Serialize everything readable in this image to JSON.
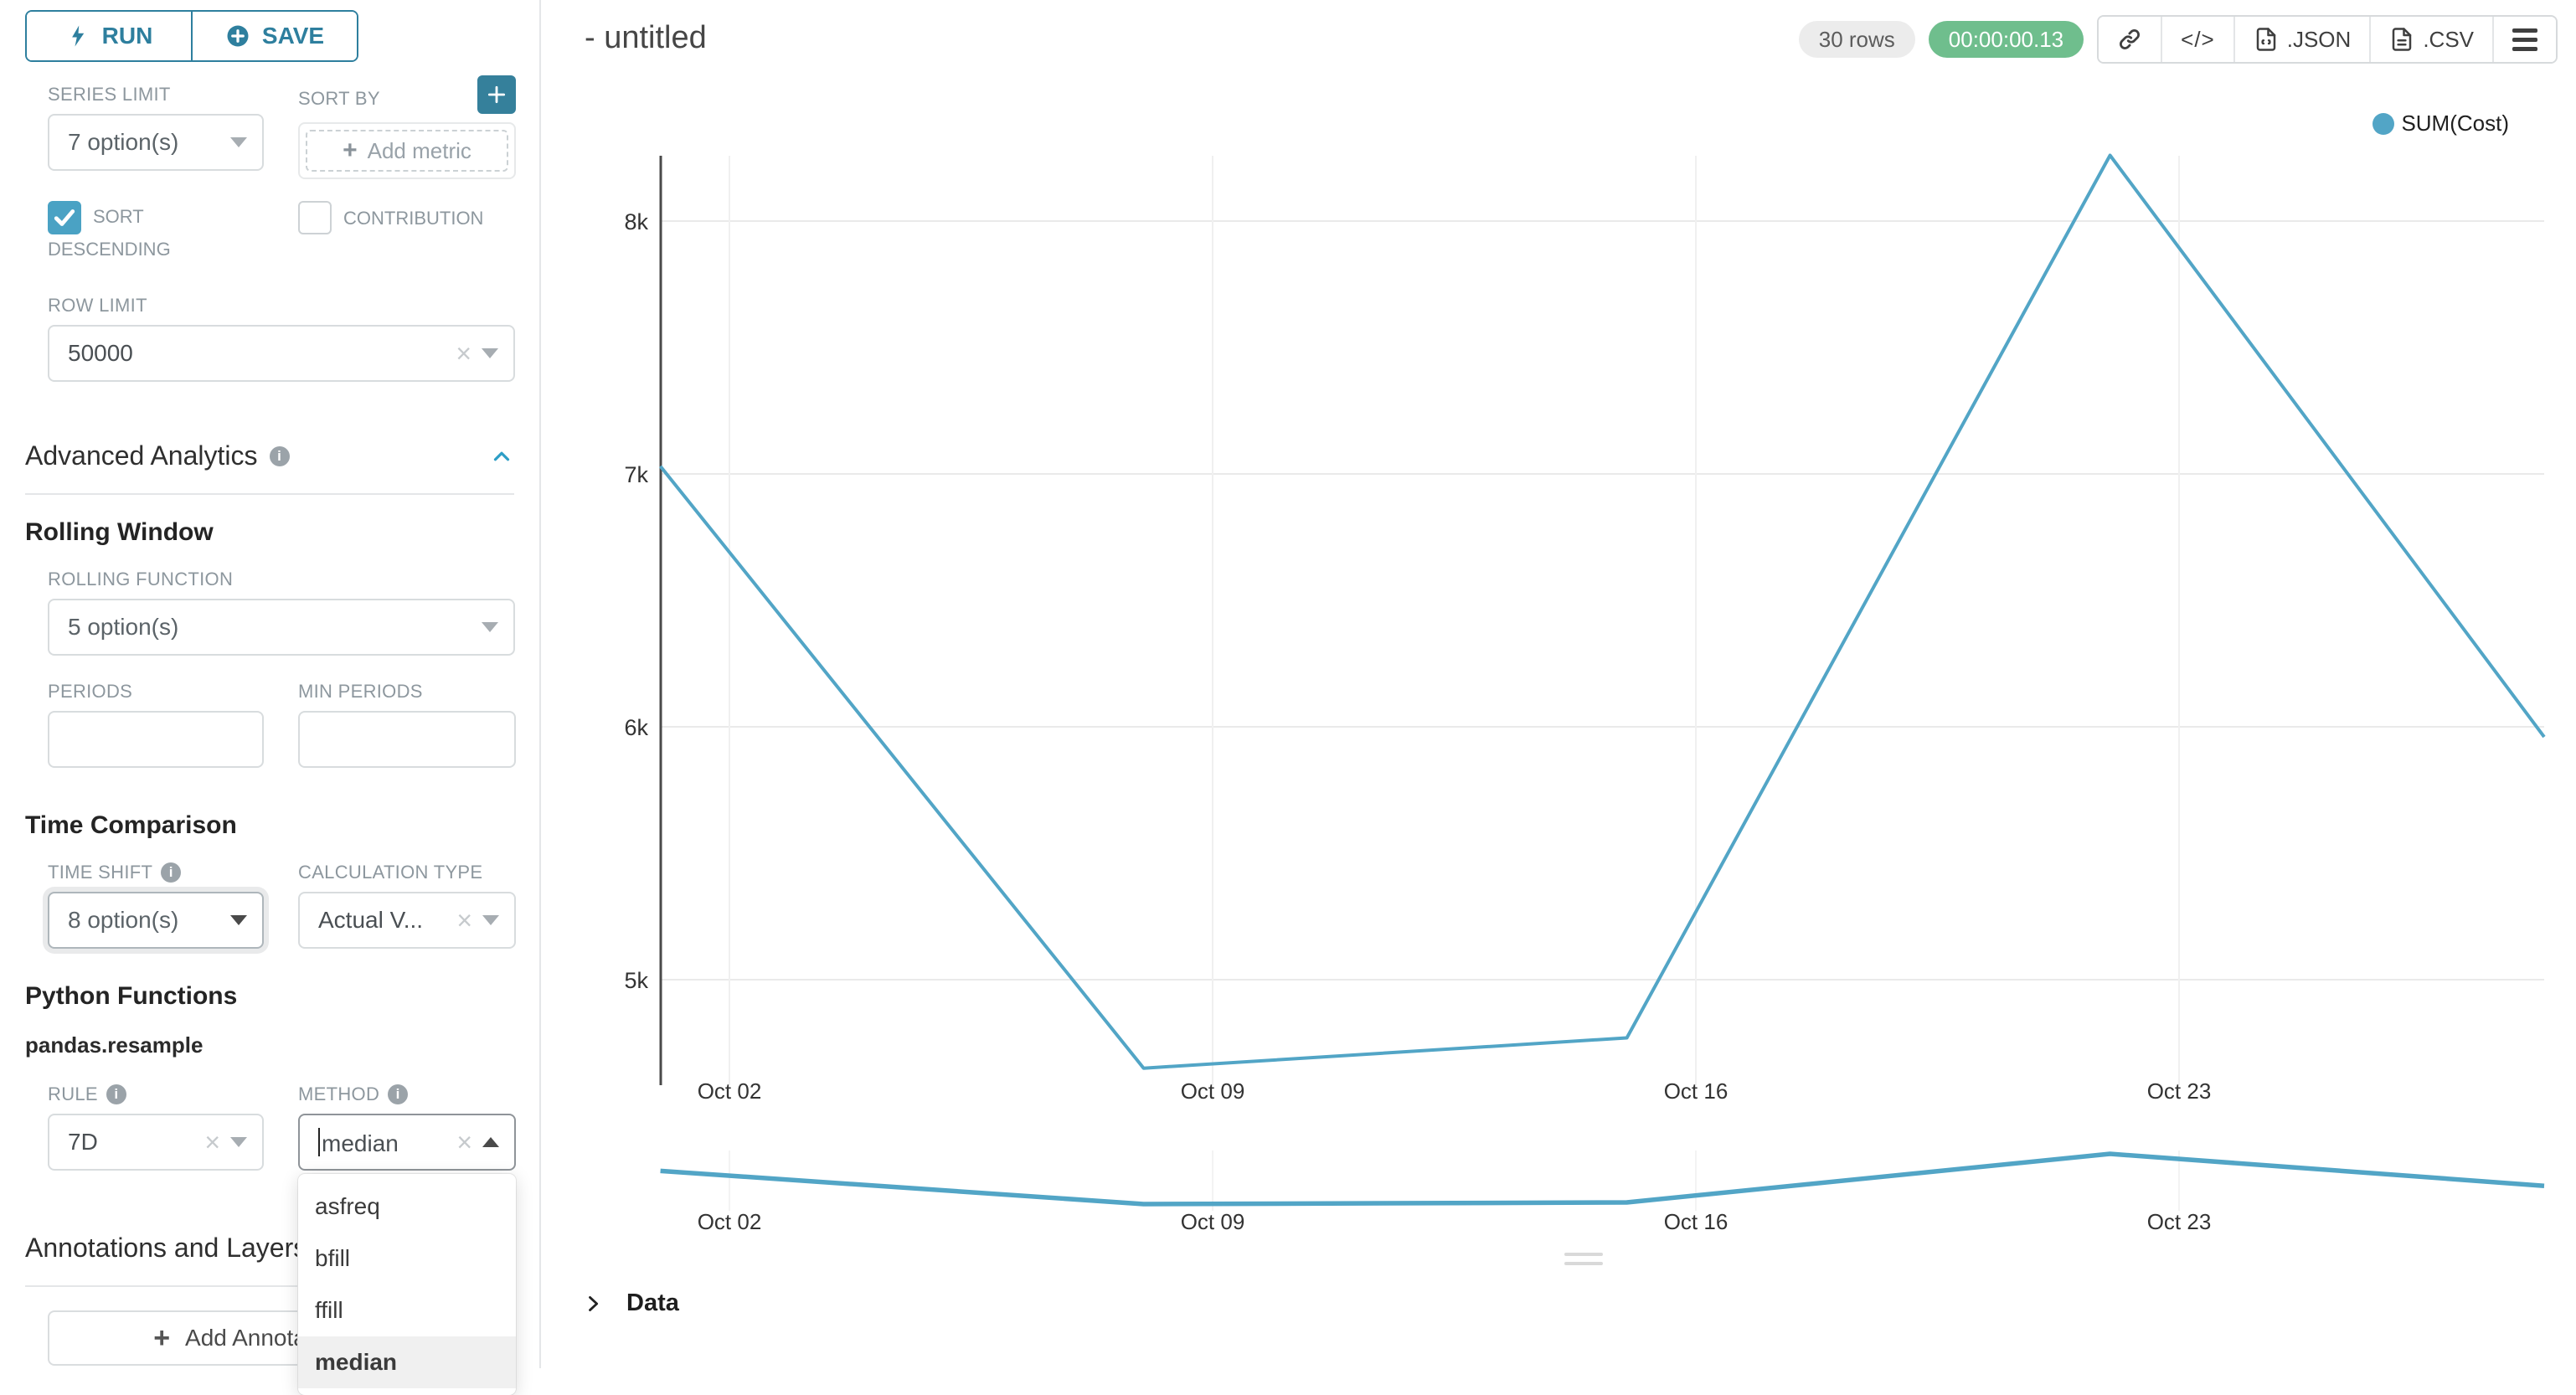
{
  "colors": {
    "accent_teal": "#2E7F9E",
    "plus_button": "#35809B",
    "checkbox": "#4AA2C4",
    "line": "#52A5C6",
    "success_badge": "#6FBE8D",
    "rows_pill_bg": "#ECECEC"
  },
  "sidebar": {
    "run_label": "RUN",
    "save_label": "SAVE",
    "series_limit": {
      "label": "SERIES LIMIT",
      "value": "7 option(s)"
    },
    "sort_by": {
      "label": "SORT BY",
      "add_metric_label": "Add metric"
    },
    "sort_descending": {
      "label": "SORT DESCENDING",
      "checked": true
    },
    "contribution": {
      "label": "CONTRIBUTION",
      "checked": false
    },
    "row_limit": {
      "label": "ROW LIMIT",
      "value": "50000"
    },
    "advanced_analytics_title": "Advanced Analytics",
    "rolling_window": {
      "title": "Rolling Window",
      "rolling_function": {
        "label": "ROLLING FUNCTION",
        "value": "5 option(s)"
      },
      "periods_label": "PERIODS",
      "min_periods_label": "MIN PERIODS"
    },
    "time_comparison": {
      "title": "Time Comparison",
      "time_shift": {
        "label": "TIME SHIFT",
        "value": "8 option(s)"
      },
      "calculation_type": {
        "label": "CALCULATION TYPE",
        "value": "Actual V..."
      }
    },
    "python_functions": {
      "title": "Python Functions",
      "subtitle": "pandas.resample",
      "rule": {
        "label": "RULE",
        "value": "7D"
      },
      "method": {
        "label": "METHOD",
        "value": "median",
        "options": [
          "asfreq",
          "bfill",
          "ffill",
          "median"
        ],
        "selected": "median"
      }
    },
    "annotations": {
      "title": "Annotations and Layers",
      "add_button_label": "Add Annotation Layer"
    }
  },
  "header": {
    "title": "- untitled",
    "rows_badge": "30 rows",
    "timer_badge": "00:00:00.13",
    "json_label": ".JSON",
    "csv_label": ".CSV"
  },
  "chart_data": {
    "type": "line",
    "title": "- untitled",
    "legend": {
      "position": "top-right",
      "items": [
        {
          "label": "SUM(Cost)",
          "color": "#52A5C6"
        }
      ]
    },
    "x_axis": {
      "tick_labels": [
        "Oct 02",
        "Oct 09",
        "Oct 16",
        "Oct 23"
      ],
      "tick_day_offsets": [
        0,
        7,
        14,
        21
      ]
    },
    "y_axis": {
      "tick_labels": [
        "8k",
        "7k",
        "6k",
        "5k"
      ],
      "tick_values": [
        8000,
        7000,
        6000,
        5000
      ],
      "range_approx": [
        4550,
        8300
      ]
    },
    "series": [
      {
        "name": "SUM(Cost)",
        "color": "#52A5C6",
        "x_labels": [
          "Oct 01",
          "Oct 08",
          "Oct 15",
          "Oct 22",
          "Oct 29"
        ],
        "day_offsets": [
          -1,
          6,
          13,
          20,
          27
        ],
        "values": [
          7030,
          4650,
          4770,
          8260,
          5700
        ]
      }
    ],
    "grid": true,
    "mini_range_chart": true
  },
  "data_panel": {
    "label": "Data"
  }
}
